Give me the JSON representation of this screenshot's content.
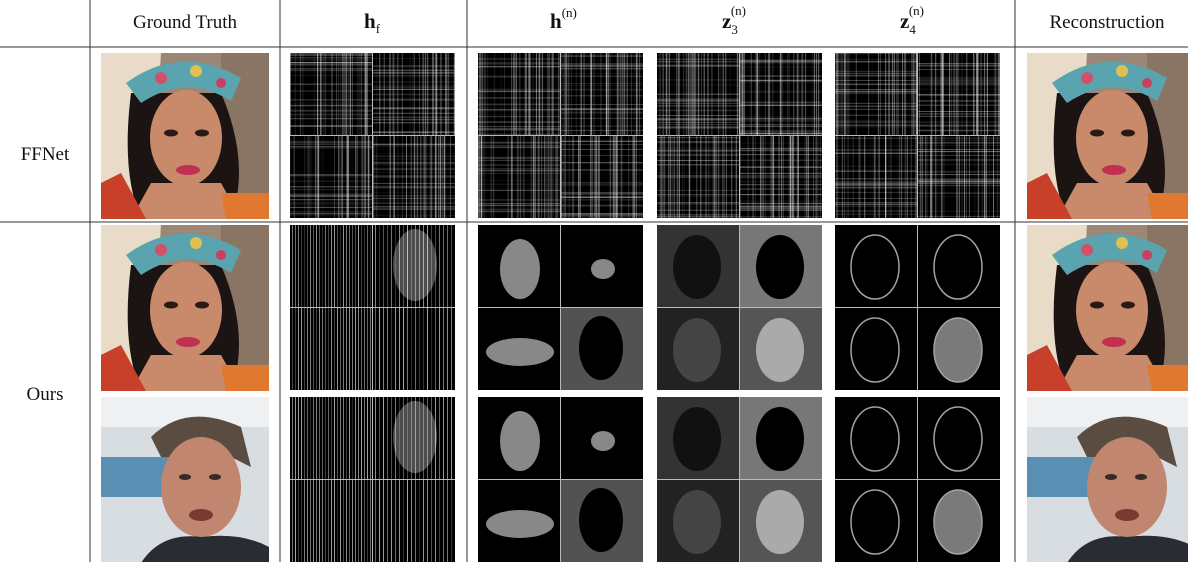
{
  "header": {
    "columns": [
      {
        "text": "Ground Truth"
      },
      {
        "base": "h",
        "sub": "f"
      },
      {
        "base": "h",
        "sup": "(n)"
      },
      {
        "base": "z",
        "sub": "3",
        "sup": "(n)"
      },
      {
        "base": "z",
        "sub": "4",
        "sup": "(n)"
      },
      {
        "text": "Reconstruction"
      }
    ]
  },
  "rows": [
    {
      "label": "FFNet"
    },
    {
      "label": "Ours"
    }
  ]
}
